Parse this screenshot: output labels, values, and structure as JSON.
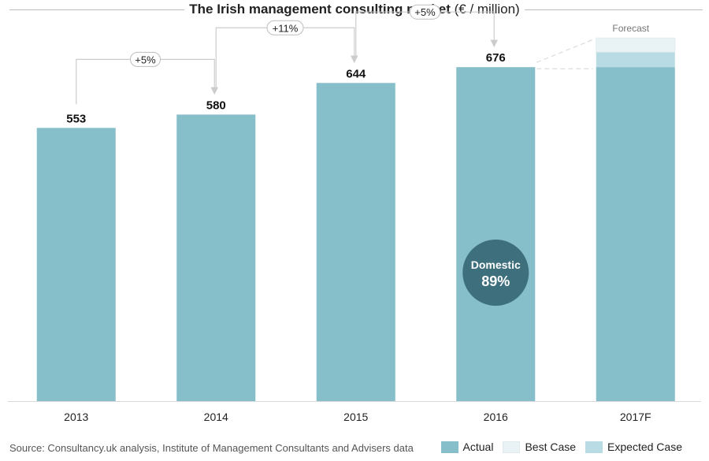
{
  "chart_data": {
    "type": "bar",
    "title_bold": "The Irish management consulting market",
    "title_unit": " (€ / million)",
    "categories": [
      "2013",
      "2014",
      "2015",
      "2016",
      "2017F"
    ],
    "series": [
      {
        "name": "Actual",
        "values": [
          553,
          580,
          644,
          676,
          676
        ]
      },
      {
        "name": "Expected Case",
        "values": [
          null,
          null,
          null,
          null,
          706
        ]
      },
      {
        "name": "Best Case",
        "values": [
          null,
          null,
          null,
          null,
          735
        ]
      }
    ],
    "value_labels": [
      "553",
      "580",
      "644",
      "676",
      ""
    ],
    "growth_labels": [
      {
        "from": "2013",
        "to": "2014",
        "label": "+5%"
      },
      {
        "from": "2014",
        "to": "2015",
        "label": "+11%"
      },
      {
        "from": "2015",
        "to": "2016",
        "label": "+5%"
      }
    ],
    "forecast_label": "Forecast",
    "annotation": {
      "category": "2016",
      "line1": "Domestic",
      "line2": "89%"
    },
    "ylim": [
      0,
      780
    ],
    "xlabel": "",
    "ylabel": "",
    "grid": false,
    "legend_position": "bottom-right",
    "colors": {
      "actual": "#86bec9",
      "expected": "#b9dbe3",
      "best": "#e9f3f5",
      "bubble": "#3e6f7d",
      "arrow": "#cccccc"
    }
  },
  "source": "Source: Consultancy.uk analysis, Institute of Management Consultants and Advisers data",
  "legend": {
    "actual": "Actual",
    "best": "Best Case",
    "expected": "Expected Case"
  }
}
